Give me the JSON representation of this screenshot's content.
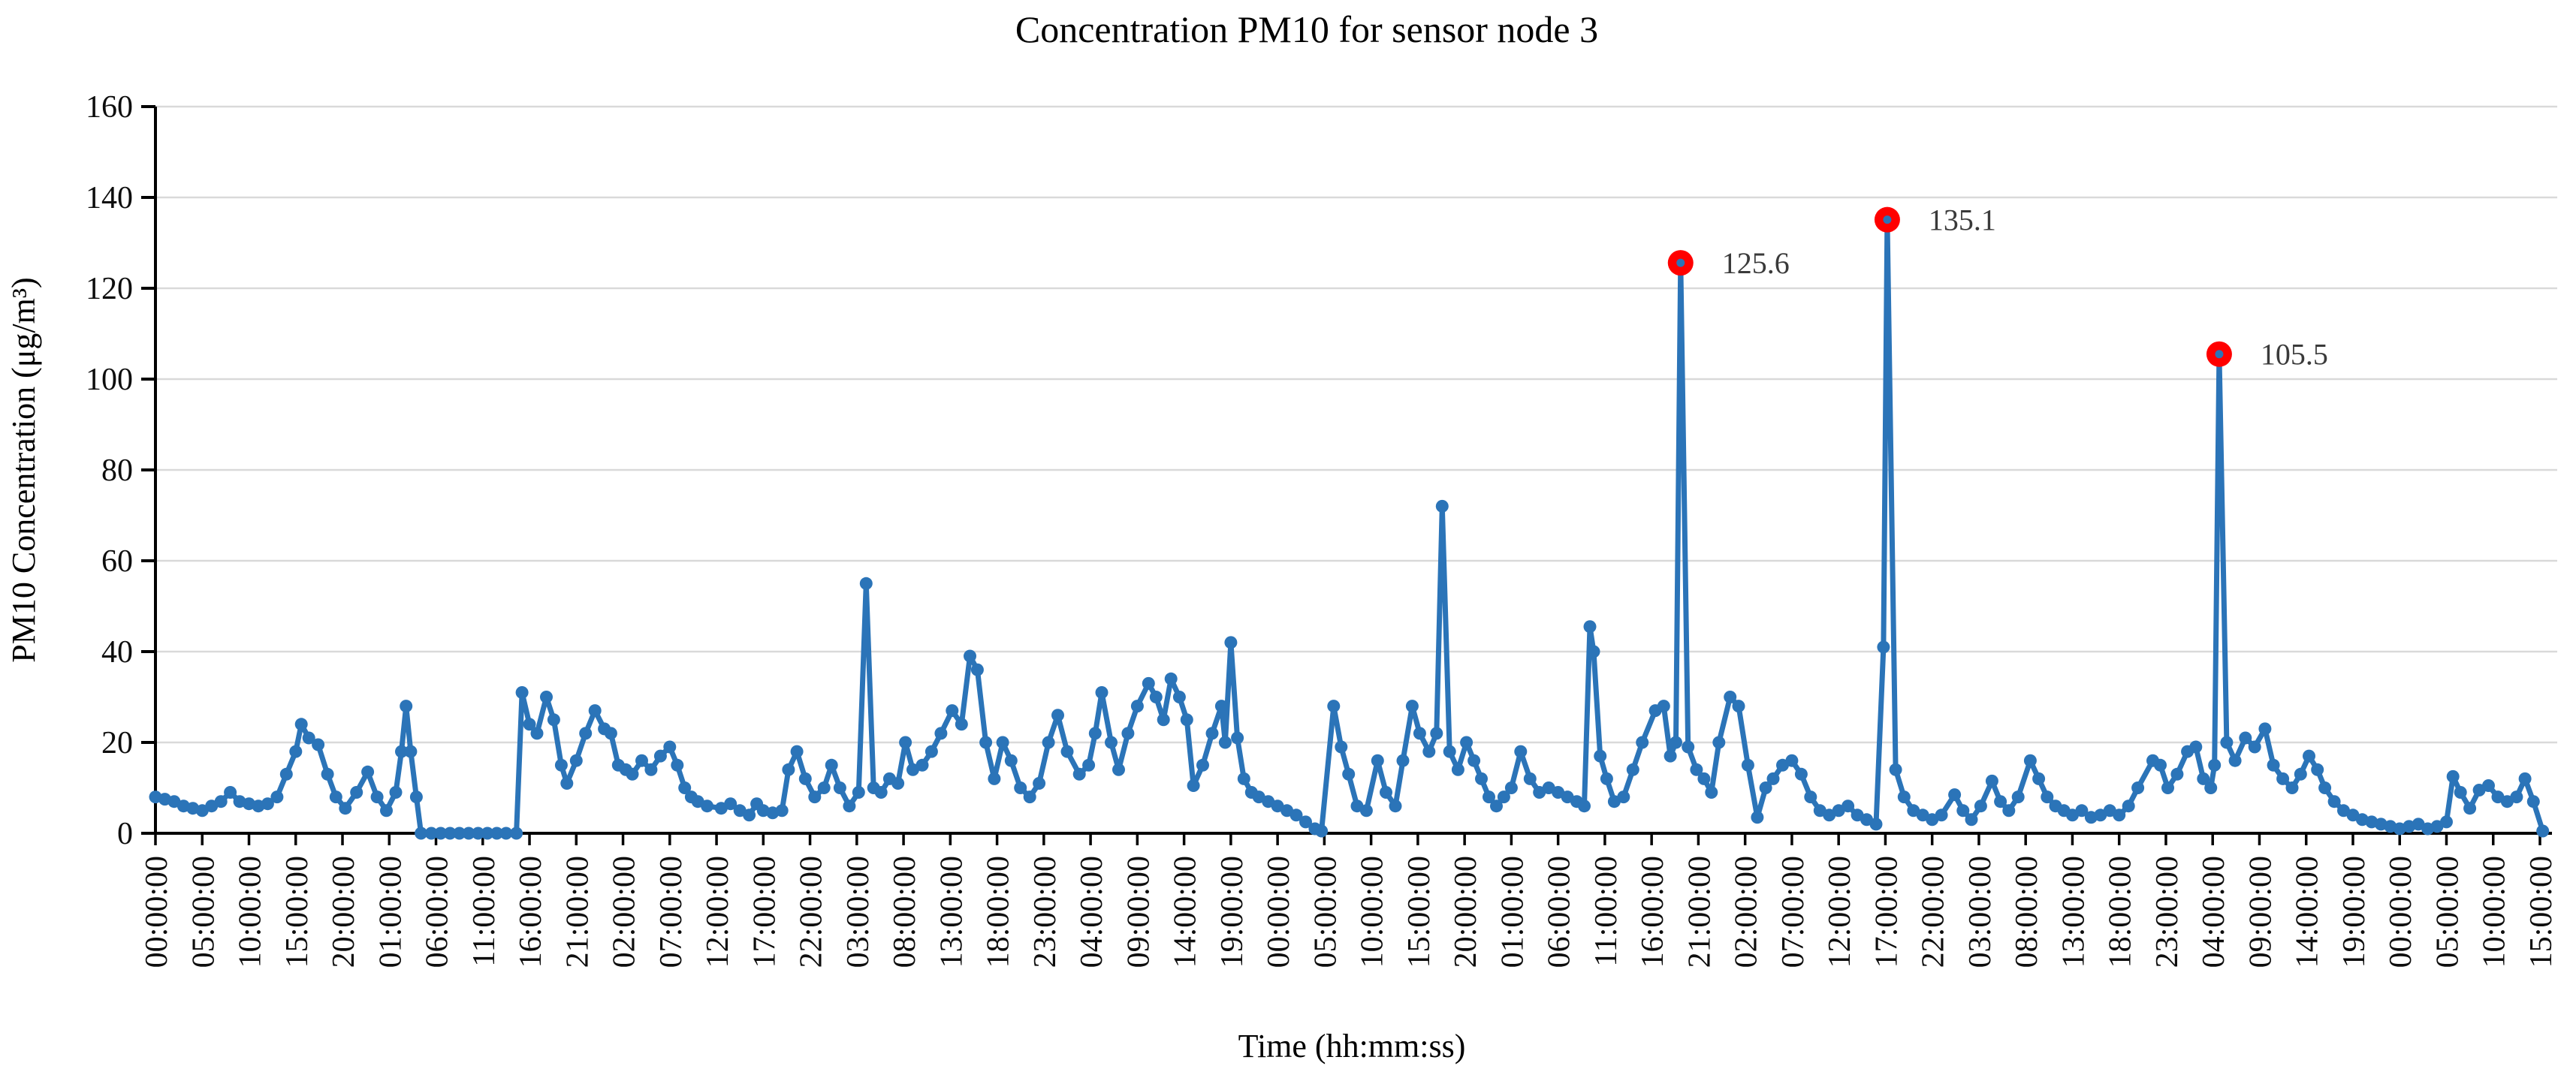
{
  "page": {
    "background": "#ffffff"
  },
  "chart_data": {
    "type": "line",
    "title": "Concentration PM10 for sensor node 3",
    "xlabel": "Time (hh:mm:ss)",
    "ylabel": "PM10 Concentration (μg/m³)",
    "ylim": [
      0,
      160
    ],
    "y_ticks": [
      0,
      20,
      40,
      60,
      80,
      100,
      120,
      140,
      160
    ],
    "grid": "horizontal-only",
    "legend": "none",
    "x_tick_interval_hours": 5,
    "x_tick_labels": [
      "00:00:00",
      "05:00:00",
      "10:00:00",
      "15:00:00",
      "20:00:00",
      "01:00:00",
      "06:00:00",
      "11:00:00",
      "16:00:00",
      "21:00:00",
      "02:00:00",
      "07:00:00",
      "12:00:00",
      "17:00:00",
      "22:00:00",
      "03:00:00",
      "08:00:00",
      "13:00:00",
      "18:00:00",
      "23:00:00",
      "04:00:00",
      "09:00:00",
      "14:00:00",
      "19:00:00",
      "00:00:00",
      "05:00:00",
      "10:00:00",
      "15:00:00",
      "20:00:00",
      "01:00:00",
      "06:00:00",
      "11:00:00",
      "16:00:00",
      "21:00:00",
      "02:00:00",
      "07:00:00",
      "12:00:00",
      "17:00:00",
      "22:00:00",
      "03:00:00",
      "08:00:00",
      "13:00:00",
      "18:00:00",
      "23:00:00",
      "04:00:00",
      "09:00:00",
      "14:00:00",
      "19:00:00",
      "00:00:00",
      "05:00:00",
      "10:00:00",
      "15:00:00"
    ],
    "series": [
      {
        "name": "PM10",
        "color": "#2b74b8",
        "points": [
          [
            0,
            8
          ],
          [
            1,
            7.5
          ],
          [
            2,
            7
          ],
          [
            3,
            6
          ],
          [
            4,
            5.5
          ],
          [
            5,
            5
          ],
          [
            6,
            6
          ],
          [
            7,
            7
          ],
          [
            8,
            9
          ],
          [
            9,
            7
          ],
          [
            10,
            6.5
          ],
          [
            11,
            6
          ],
          [
            12,
            6.5
          ],
          [
            13,
            8
          ],
          [
            14,
            13
          ],
          [
            15,
            18
          ],
          [
            15.6,
            24
          ],
          [
            16.4,
            21
          ],
          [
            17.4,
            19.5
          ],
          [
            18.4,
            13
          ],
          [
            19.3,
            8
          ],
          [
            20.3,
            5.5
          ],
          [
            21.5,
            9
          ],
          [
            22.7,
            13.5
          ],
          [
            23.7,
            8
          ],
          [
            24.7,
            5
          ],
          [
            25.7,
            9
          ],
          [
            26.3,
            18
          ],
          [
            26.8,
            28
          ],
          [
            27.3,
            18
          ],
          [
            27.9,
            8
          ],
          [
            28.4,
            0
          ],
          [
            29.5,
            0
          ],
          [
            30.5,
            0
          ],
          [
            31.5,
            0
          ],
          [
            32.5,
            0
          ],
          [
            33.5,
            0
          ],
          [
            34.5,
            0
          ],
          [
            35.5,
            0
          ],
          [
            36.5,
            0
          ],
          [
            37.5,
            0
          ],
          [
            38.6,
            0
          ],
          [
            39.2,
            31
          ],
          [
            40,
            24
          ],
          [
            40.8,
            22
          ],
          [
            41.8,
            30
          ],
          [
            42.6,
            25
          ],
          [
            43.4,
            15
          ],
          [
            44,
            11
          ],
          [
            45,
            16
          ],
          [
            46,
            22
          ],
          [
            47,
            27
          ],
          [
            48,
            23
          ],
          [
            48.7,
            22
          ],
          [
            49.5,
            15
          ],
          [
            50.3,
            14
          ],
          [
            51,
            13
          ],
          [
            52,
            16
          ],
          [
            53,
            14
          ],
          [
            54,
            17
          ],
          [
            55,
            19
          ],
          [
            55.8,
            15
          ],
          [
            56.6,
            10
          ],
          [
            57.3,
            8
          ],
          [
            58,
            7
          ],
          [
            59,
            6
          ],
          [
            60.5,
            5.5
          ],
          [
            61.5,
            6.5
          ],
          [
            62.5,
            5
          ],
          [
            63.5,
            4
          ],
          [
            64.3,
            6.5
          ],
          [
            65,
            5
          ],
          [
            66,
            4.5
          ],
          [
            67,
            5
          ],
          [
            67.7,
            14
          ],
          [
            68.6,
            18
          ],
          [
            69.5,
            12
          ],
          [
            70.5,
            8
          ],
          [
            71.5,
            10
          ],
          [
            72.3,
            15
          ],
          [
            73.2,
            10
          ],
          [
            74.2,
            6
          ],
          [
            75.2,
            9
          ],
          [
            76,
            55
          ],
          [
            76.8,
            10
          ],
          [
            77.6,
            9
          ],
          [
            78.5,
            12
          ],
          [
            79.4,
            11
          ],
          [
            80.2,
            20
          ],
          [
            81,
            14
          ],
          [
            82,
            15
          ],
          [
            83,
            18
          ],
          [
            84,
            22
          ],
          [
            85.2,
            27
          ],
          [
            86.2,
            24
          ],
          [
            87.1,
            39
          ],
          [
            87.9,
            36
          ],
          [
            88.8,
            20
          ],
          [
            89.7,
            12
          ],
          [
            90.6,
            20
          ],
          [
            91.5,
            16
          ],
          [
            92.5,
            10
          ],
          [
            93.5,
            8
          ],
          [
            94.5,
            11
          ],
          [
            95.5,
            20
          ],
          [
            96.5,
            26
          ],
          [
            97.5,
            18
          ],
          [
            98.8,
            13
          ],
          [
            99.8,
            15
          ],
          [
            100.5,
            22
          ],
          [
            101.2,
            31
          ],
          [
            102.2,
            20
          ],
          [
            103,
            14
          ],
          [
            104,
            22
          ],
          [
            105,
            28
          ],
          [
            106.2,
            33
          ],
          [
            107,
            30
          ],
          [
            107.8,
            25
          ],
          [
            108.6,
            34
          ],
          [
            109.5,
            30
          ],
          [
            110.3,
            25
          ],
          [
            111,
            10.5
          ],
          [
            112,
            15
          ],
          [
            113,
            22
          ],
          [
            114,
            28
          ],
          [
            114.4,
            20
          ],
          [
            115,
            42
          ],
          [
            115.7,
            21
          ],
          [
            116.4,
            12
          ],
          [
            117.2,
            9
          ],
          [
            118,
            8
          ],
          [
            119,
            7
          ],
          [
            120,
            6
          ],
          [
            121,
            5
          ],
          [
            122,
            4
          ],
          [
            123,
            2.5
          ],
          [
            124,
            1
          ],
          [
            124.7,
            0.5
          ],
          [
            126,
            28
          ],
          [
            126.8,
            19
          ],
          [
            127.6,
            13
          ],
          [
            128.5,
            6
          ],
          [
            129.5,
            5
          ],
          [
            130.7,
            16
          ],
          [
            131.6,
            9
          ],
          [
            132.6,
            6
          ],
          [
            133.4,
            16
          ],
          [
            134.4,
            28
          ],
          [
            135.2,
            22
          ],
          [
            136.2,
            18
          ],
          [
            137,
            22
          ],
          [
            137.6,
            72
          ],
          [
            138.4,
            18
          ],
          [
            139.3,
            14
          ],
          [
            140.2,
            20
          ],
          [
            141,
            16
          ],
          [
            141.8,
            12
          ],
          [
            142.6,
            8
          ],
          [
            143.4,
            6
          ],
          [
            144.2,
            8
          ],
          [
            145,
            10
          ],
          [
            146,
            18
          ],
          [
            147,
            12
          ],
          [
            148,
            9
          ],
          [
            149,
            10
          ],
          [
            150,
            9
          ],
          [
            151,
            8
          ],
          [
            152,
            7
          ],
          [
            152.8,
            6
          ],
          [
            153.4,
            45.5
          ],
          [
            153.8,
            40
          ],
          [
            154.5,
            17
          ],
          [
            155.2,
            12
          ],
          [
            156,
            7
          ],
          [
            157,
            8
          ],
          [
            158,
            14
          ],
          [
            159,
            20
          ],
          [
            160.4,
            27
          ],
          [
            161.3,
            28
          ],
          [
            162,
            17
          ],
          [
            162.6,
            20
          ],
          [
            163.1,
            125.6
          ],
          [
            163.9,
            19
          ],
          [
            164.8,
            14
          ],
          [
            165.6,
            12
          ],
          [
            166.4,
            9
          ],
          [
            167.2,
            20
          ],
          [
            168.4,
            30
          ],
          [
            169.3,
            28
          ],
          [
            170.3,
            15
          ],
          [
            171.3,
            3.5
          ],
          [
            172.2,
            10
          ],
          [
            173,
            12
          ],
          [
            174,
            15
          ],
          [
            175,
            16
          ],
          [
            176,
            13
          ],
          [
            177,
            8
          ],
          [
            178,
            5
          ],
          [
            179,
            4
          ],
          [
            180,
            5
          ],
          [
            181,
            6
          ],
          [
            182,
            4
          ],
          [
            183,
            3
          ],
          [
            184,
            2
          ],
          [
            184.8,
            41
          ],
          [
            185.2,
            135.1
          ],
          [
            186.1,
            14
          ],
          [
            187,
            8
          ],
          [
            188,
            5
          ],
          [
            189,
            4
          ],
          [
            190,
            3
          ],
          [
            191,
            4
          ],
          [
            192.4,
            8.5
          ],
          [
            193.3,
            5
          ],
          [
            194.2,
            3
          ],
          [
            195.2,
            6
          ],
          [
            196.4,
            11.5
          ],
          [
            197.3,
            7
          ],
          [
            198.2,
            5
          ],
          [
            199.2,
            8
          ],
          [
            200.5,
            16
          ],
          [
            201.4,
            12
          ],
          [
            202.3,
            8
          ],
          [
            203.2,
            6
          ],
          [
            204.1,
            5
          ],
          [
            205,
            4
          ],
          [
            206,
            5
          ],
          [
            207,
            3.5
          ],
          [
            208,
            4
          ],
          [
            209,
            5
          ],
          [
            210,
            4
          ],
          [
            211,
            6
          ],
          [
            212,
            10
          ],
          [
            213.6,
            16
          ],
          [
            214.4,
            15
          ],
          [
            215.2,
            10
          ],
          [
            216.2,
            13
          ],
          [
            217.3,
            18
          ],
          [
            218.2,
            19
          ],
          [
            219,
            12
          ],
          [
            219.8,
            10
          ],
          [
            220.2,
            15
          ],
          [
            220.7,
            105.5
          ],
          [
            221.5,
            20
          ],
          [
            222.4,
            16
          ],
          [
            223.5,
            21
          ],
          [
            224.5,
            19
          ],
          [
            225.6,
            23
          ],
          [
            226.5,
            15
          ],
          [
            227.5,
            12
          ],
          [
            228.5,
            10
          ],
          [
            229.4,
            13
          ],
          [
            230.3,
            17
          ],
          [
            231.2,
            14
          ],
          [
            232,
            10
          ],
          [
            233,
            7
          ],
          [
            234,
            5
          ],
          [
            235,
            4
          ],
          [
            236,
            3
          ],
          [
            237,
            2.5
          ],
          [
            238,
            2
          ],
          [
            239,
            1.5
          ],
          [
            240,
            1
          ],
          [
            241,
            1.5
          ],
          [
            242,
            2
          ],
          [
            243,
            1
          ],
          [
            244,
            1.5
          ],
          [
            245,
            2.5
          ],
          [
            245.7,
            12.5
          ],
          [
            246.5,
            9
          ],
          [
            247.5,
            5.5
          ],
          [
            248.5,
            9.5
          ],
          [
            249.5,
            10.5
          ],
          [
            250.5,
            8
          ],
          [
            251.5,
            7
          ],
          [
            252.5,
            8
          ],
          [
            253.4,
            12
          ],
          [
            254.3,
            7
          ],
          [
            255.3,
            0.5
          ]
        ]
      }
    ],
    "annotations": [
      {
        "text": "125.6",
        "hour": 163.1,
        "value": 125.6
      },
      {
        "text": "135.1",
        "hour": 185.2,
        "value": 135.1
      },
      {
        "text": "105.5",
        "hour": 220.7,
        "value": 105.5
      }
    ]
  },
  "style": {
    "line_color": "#2b74b8",
    "marker_color": "#2b74b8",
    "annotation_marker_color": "#ff0000",
    "annotation_dot_color": "#2b74b8",
    "annotation_text_color": "#3a3a3a",
    "grid_color": "#d9d9d9",
    "axis_color": "#000000",
    "tick_text_color": "#0d0d0d"
  }
}
